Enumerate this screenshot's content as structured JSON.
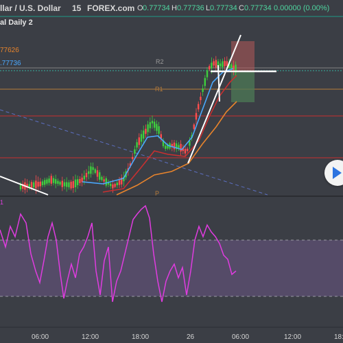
{
  "header": {
    "symbol_title": "llar / U.S. Dollar",
    "interval": "15",
    "source": "FOREX.com",
    "o_label": "O",
    "o_value": "0.77734",
    "h_label": "H",
    "h_value": "0.77736",
    "l_label": "L",
    "l_value": "0.77734",
    "c_label": "C",
    "c_value": "0.77734",
    "change": "0.00000 (0.00%)"
  },
  "indicator": {
    "title": "al Daily 2",
    "values": [
      {
        "text": "77626",
        "color": "#e8842c"
      },
      {
        "text": ".77736",
        "color": "#4ba9ff"
      }
    ]
  },
  "pivot_labels": {
    "r2": "R2",
    "r1": "R1",
    "p": "P"
  },
  "rsi_label": "1",
  "time_axis": {
    "labels": [
      "06:00",
      "12:00",
      "18:00",
      "26",
      "06:00",
      "12:00",
      "18:"
    ]
  },
  "colors": {
    "background": "#3b3e45",
    "up_candle": "#3ecf3e",
    "down_candle": "#ff4d4d",
    "ma_blue": "#4ba9ff",
    "ma_orange": "#e8842c",
    "ma_red": "#c83030",
    "rsi": "#e03ce0",
    "rsi_band": "#5a4d6e",
    "price_line": "#39c0a0"
  },
  "play_button": {
    "icon": "play-icon"
  }
}
